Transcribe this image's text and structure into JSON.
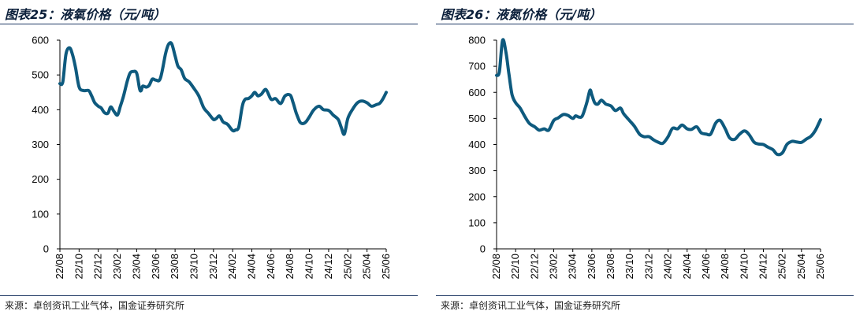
{
  "charts": [
    {
      "title": "图表25：液氧价格（元/吨）",
      "source": "来源：卓创资讯工业气体，国金证券研究所"
    },
    {
      "title": "图表26：液氮价格（元/吨）",
      "source": "来源：卓创资讯工业气体，国金证券研究所"
    }
  ],
  "colors": {
    "line": "#0e5a7e",
    "rule": "#1f3864",
    "axis": "#000000"
  },
  "chart_data": [
    {
      "type": "line",
      "title": "",
      "xlabel": "",
      "ylabel": "",
      "ylim": [
        0,
        600
      ],
      "yticks": [
        0,
        100,
        200,
        300,
        400,
        500,
        600
      ],
      "xlim": [
        "2022-08",
        "2025-06"
      ],
      "xticks": [
        "22/08",
        "22/10",
        "22/12",
        "23/02",
        "23/04",
        "23/06",
        "23/08",
        "23/10",
        "23/12",
        "24/02",
        "24/04",
        "24/06",
        "24/08",
        "24/10",
        "24/12",
        "25/02",
        "25/04",
        "25/06"
      ],
      "grid": false,
      "legend": "none",
      "series": [
        {
          "x": [
            "2022-08-01",
            "2022-08-10",
            "2022-08-20",
            "2022-09-01",
            "2022-09-10",
            "2022-09-20",
            "2022-10-01",
            "2022-10-15",
            "2022-11-01",
            "2022-11-10",
            "2022-11-20",
            "2022-12-01",
            "2022-12-10",
            "2022-12-20",
            "2023-01-01",
            "2023-01-10",
            "2023-01-20",
            "2023-02-01",
            "2023-02-10",
            "2023-02-20",
            "2023-03-01",
            "2023-03-10",
            "2023-03-20",
            "2023-04-01",
            "2023-04-10",
            "2023-04-15",
            "2023-04-20",
            "2023-05-01",
            "2023-05-10",
            "2023-05-20",
            "2023-06-01",
            "2023-06-15",
            "2023-07-01",
            "2023-07-10",
            "2023-07-20",
            "2023-08-01",
            "2023-08-10",
            "2023-08-20",
            "2023-09-01",
            "2023-09-15",
            "2023-10-01",
            "2023-10-15",
            "2023-11-01",
            "2023-11-15",
            "2023-12-01",
            "2023-12-10",
            "2023-12-20",
            "2024-01-01",
            "2024-01-15",
            "2024-02-01",
            "2024-02-10",
            "2024-02-20",
            "2024-03-01",
            "2024-03-10",
            "2024-03-20",
            "2024-04-01",
            "2024-04-10",
            "2024-04-20",
            "2024-05-01",
            "2024-05-15",
            "2024-06-01",
            "2024-06-15",
            "2024-07-01",
            "2024-07-15",
            "2024-08-01",
            "2024-08-10",
            "2024-08-20",
            "2024-09-01",
            "2024-09-10",
            "2024-09-20",
            "2024-10-01",
            "2024-10-15",
            "2024-11-01",
            "2024-11-15",
            "2024-12-01",
            "2024-12-15",
            "2025-01-01",
            "2025-01-10",
            "2025-01-20",
            "2025-02-01",
            "2025-02-15",
            "2025-03-01",
            "2025-03-15",
            "2025-04-01",
            "2025-04-15",
            "2025-05-01",
            "2025-05-10",
            "2025-05-20",
            "2025-06-01"
          ],
          "values": [
            475,
            480,
            560,
            578,
            560,
            520,
            465,
            455,
            455,
            440,
            420,
            410,
            405,
            392,
            390,
            408,
            395,
            385,
            410,
            440,
            480,
            505,
            510,
            505,
            460,
            455,
            468,
            465,
            470,
            488,
            485,
            490,
            560,
            587,
            590,
            555,
            525,
            515,
            490,
            480,
            460,
            440,
            405,
            390,
            372,
            375,
            382,
            365,
            358,
            340,
            342,
            350,
            410,
            430,
            432,
            440,
            450,
            440,
            445,
            458,
            430,
            432,
            418,
            440,
            442,
            420,
            390,
            365,
            360,
            365,
            380,
            400,
            410,
            400,
            398,
            385,
            372,
            350,
            330,
            375,
            400,
            420,
            425,
            420,
            410,
            415,
            418,
            430,
            450
          ]
        }
      ]
    },
    {
      "type": "line",
      "title": "",
      "xlabel": "",
      "ylabel": "",
      "ylim": [
        0,
        800
      ],
      "yticks": [
        0,
        100,
        200,
        300,
        400,
        500,
        600,
        700,
        800
      ],
      "xlim": [
        "2022-08",
        "2025-06"
      ],
      "xticks": [
        "22/08",
        "22/10",
        "22/12",
        "23/02",
        "23/04",
        "23/06",
        "23/08",
        "23/10",
        "23/12",
        "24/02",
        "24/04",
        "24/06",
        "24/08",
        "24/10",
        "24/12",
        "25/02",
        "25/04",
        "25/06"
      ],
      "grid": false,
      "legend": "none",
      "series": [
        {
          "x": [
            "2022-08-01",
            "2022-08-10",
            "2022-08-20",
            "2022-09-01",
            "2022-09-10",
            "2022-09-20",
            "2022-10-01",
            "2022-10-15",
            "2022-11-01",
            "2022-11-15",
            "2022-12-01",
            "2022-12-15",
            "2023-01-01",
            "2023-01-15",
            "2023-02-01",
            "2023-02-15",
            "2023-03-01",
            "2023-03-15",
            "2023-04-01",
            "2023-04-10",
            "2023-04-20",
            "2023-05-01",
            "2023-05-15",
            "2023-05-25",
            "2023-06-01",
            "2023-06-10",
            "2023-06-20",
            "2023-07-01",
            "2023-07-15",
            "2023-08-01",
            "2023-08-15",
            "2023-09-01",
            "2023-09-10",
            "2023-09-20",
            "2023-10-01",
            "2023-10-15",
            "2023-11-01",
            "2023-11-15",
            "2023-12-01",
            "2023-12-15",
            "2024-01-01",
            "2024-01-15",
            "2024-02-01",
            "2024-02-15",
            "2024-03-01",
            "2024-03-15",
            "2024-04-01",
            "2024-04-15",
            "2024-05-01",
            "2024-05-15",
            "2024-06-01",
            "2024-06-15",
            "2024-07-01",
            "2024-07-15",
            "2024-08-01",
            "2024-08-15",
            "2024-09-01",
            "2024-09-15",
            "2024-10-01",
            "2024-10-15",
            "2024-11-01",
            "2024-11-15",
            "2024-12-01",
            "2024-12-15",
            "2025-01-01",
            "2025-01-15",
            "2025-02-01",
            "2025-02-15",
            "2025-03-01",
            "2025-03-15",
            "2025-04-01",
            "2025-04-15",
            "2025-05-01",
            "2025-05-15",
            "2025-06-01"
          ],
          "values": [
            665,
            680,
            800,
            750,
            670,
            590,
            560,
            540,
            505,
            480,
            468,
            455,
            460,
            455,
            492,
            502,
            515,
            512,
            500,
            510,
            505,
            510,
            560,
            608,
            590,
            560,
            555,
            570,
            555,
            548,
            530,
            540,
            520,
            505,
            490,
            470,
            440,
            430,
            430,
            418,
            408,
            405,
            430,
            462,
            460,
            475,
            460,
            458,
            468,
            445,
            440,
            440,
            482,
            492,
            460,
            425,
            420,
            438,
            452,
            440,
            410,
            402,
            400,
            390,
            380,
            362,
            368,
            400,
            412,
            410,
            408,
            420,
            432,
            455,
            495
          ]
        }
      ]
    }
  ]
}
